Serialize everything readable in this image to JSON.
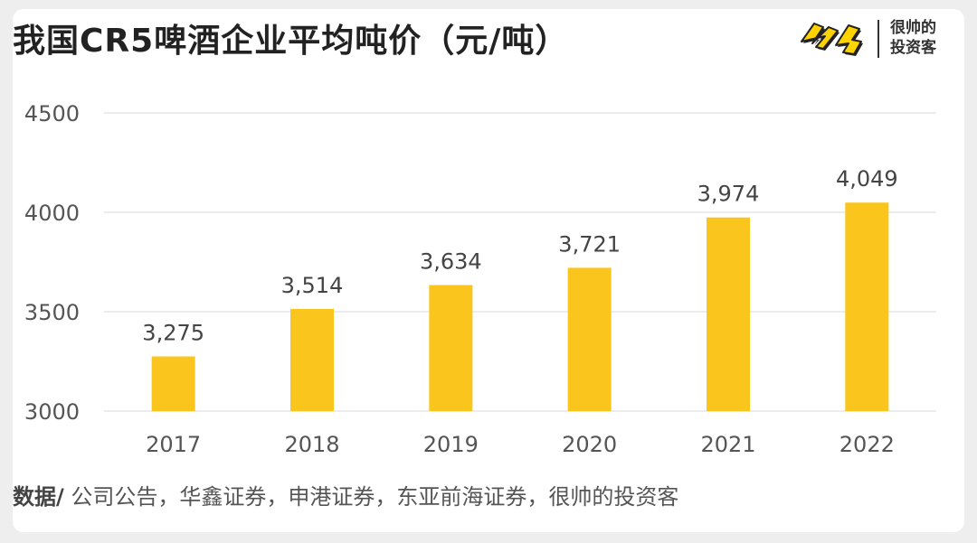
{
  "header": {
    "title": "我国CR5啤酒企业平均吨价（元/吨）"
  },
  "brand": {
    "line1": "很帅的",
    "line2": "投资客",
    "mark_color": "#FFD200"
  },
  "source": {
    "prefix": "数据/",
    "text": " 公司公告，华鑫证券，申港证券，东亚前海证券，很帅的投资客"
  },
  "colors": {
    "bar": "#FAC51C",
    "grid": "#D9D9D9",
    "tick_text": "#555555",
    "label_text": "#444444"
  },
  "chart_data": {
    "type": "bar",
    "title": "我国CR5啤酒企业平均吨价（元/吨）",
    "categories": [
      "2017",
      "2018",
      "2019",
      "2020",
      "2021",
      "2022"
    ],
    "values": [
      3275,
      3514,
      3634,
      3721,
      3974,
      4049
    ],
    "data_labels": [
      "3,275",
      "3,514",
      "3,634",
      "3,721",
      "3,974",
      "4,049"
    ],
    "ylim": [
      3000,
      4500
    ],
    "yticks": [
      3000,
      3500,
      4000,
      4500
    ],
    "ytick_labels": [
      "3000",
      "3500",
      "4000",
      "4500"
    ],
    "xlabel": "",
    "ylabel": "",
    "grid": true,
    "legend": "none"
  }
}
